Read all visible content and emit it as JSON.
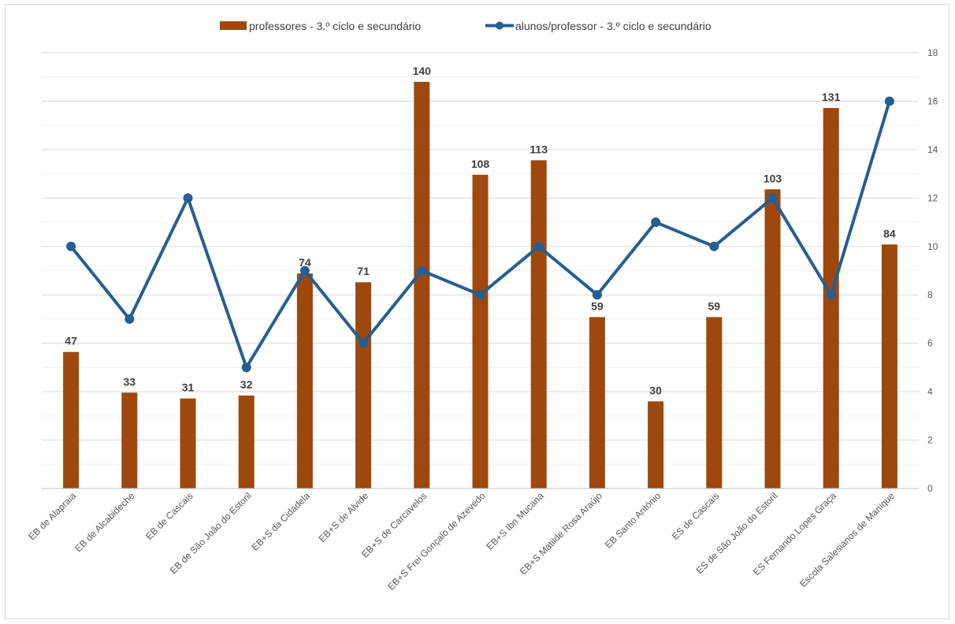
{
  "chart_data": {
    "type": "bar",
    "categories": [
      "EB de Alapraia",
      "EB de Alcabideche",
      "EB de Cascais",
      "EB de São João do Estoril",
      "EB+S da Cidadela",
      "EB+S de Alvide",
      "EB+S de Carcavelos",
      "EB+S Frei Gonçalo de Azevedo",
      "EB+S Ibn Mucana",
      "EB+S Matilde Rosa Araújo",
      "EB Santo António",
      "ES de Cascais",
      "ES de São João do Estoril",
      "ES Fernando Lopes Graça",
      "Escola Salesianos de Manique"
    ],
    "series": [
      {
        "name": "professores - 3.º ciclo e secundário",
        "type": "bar",
        "color": "#9e480e",
        "values": [
          47,
          33,
          31,
          32,
          74,
          71,
          140,
          108,
          113,
          59,
          30,
          59,
          103,
          131,
          84
        ],
        "labels": [
          "47",
          "33",
          "31",
          "32",
          "74",
          "71",
          "140",
          "108",
          "113",
          "59",
          "30",
          "59",
          "103",
          "131",
          "84"
        ]
      },
      {
        "name": "alunos/professor - 3.º ciclo e secundário",
        "type": "line",
        "color": "#255e91",
        "values": [
          10,
          7,
          12,
          5,
          9,
          6,
          9,
          8,
          10,
          8,
          11,
          10,
          12,
          8,
          16
        ]
      }
    ],
    "y_right": {
      "ticks": [
        "0",
        "2",
        "4",
        "6",
        "8",
        "10",
        "12",
        "14",
        "16",
        "18"
      ],
      "min": 0,
      "max": 18,
      "minor_grid_step": 1
    },
    "bar_value_max": 150,
    "grid": true,
    "legend_position": "top"
  }
}
